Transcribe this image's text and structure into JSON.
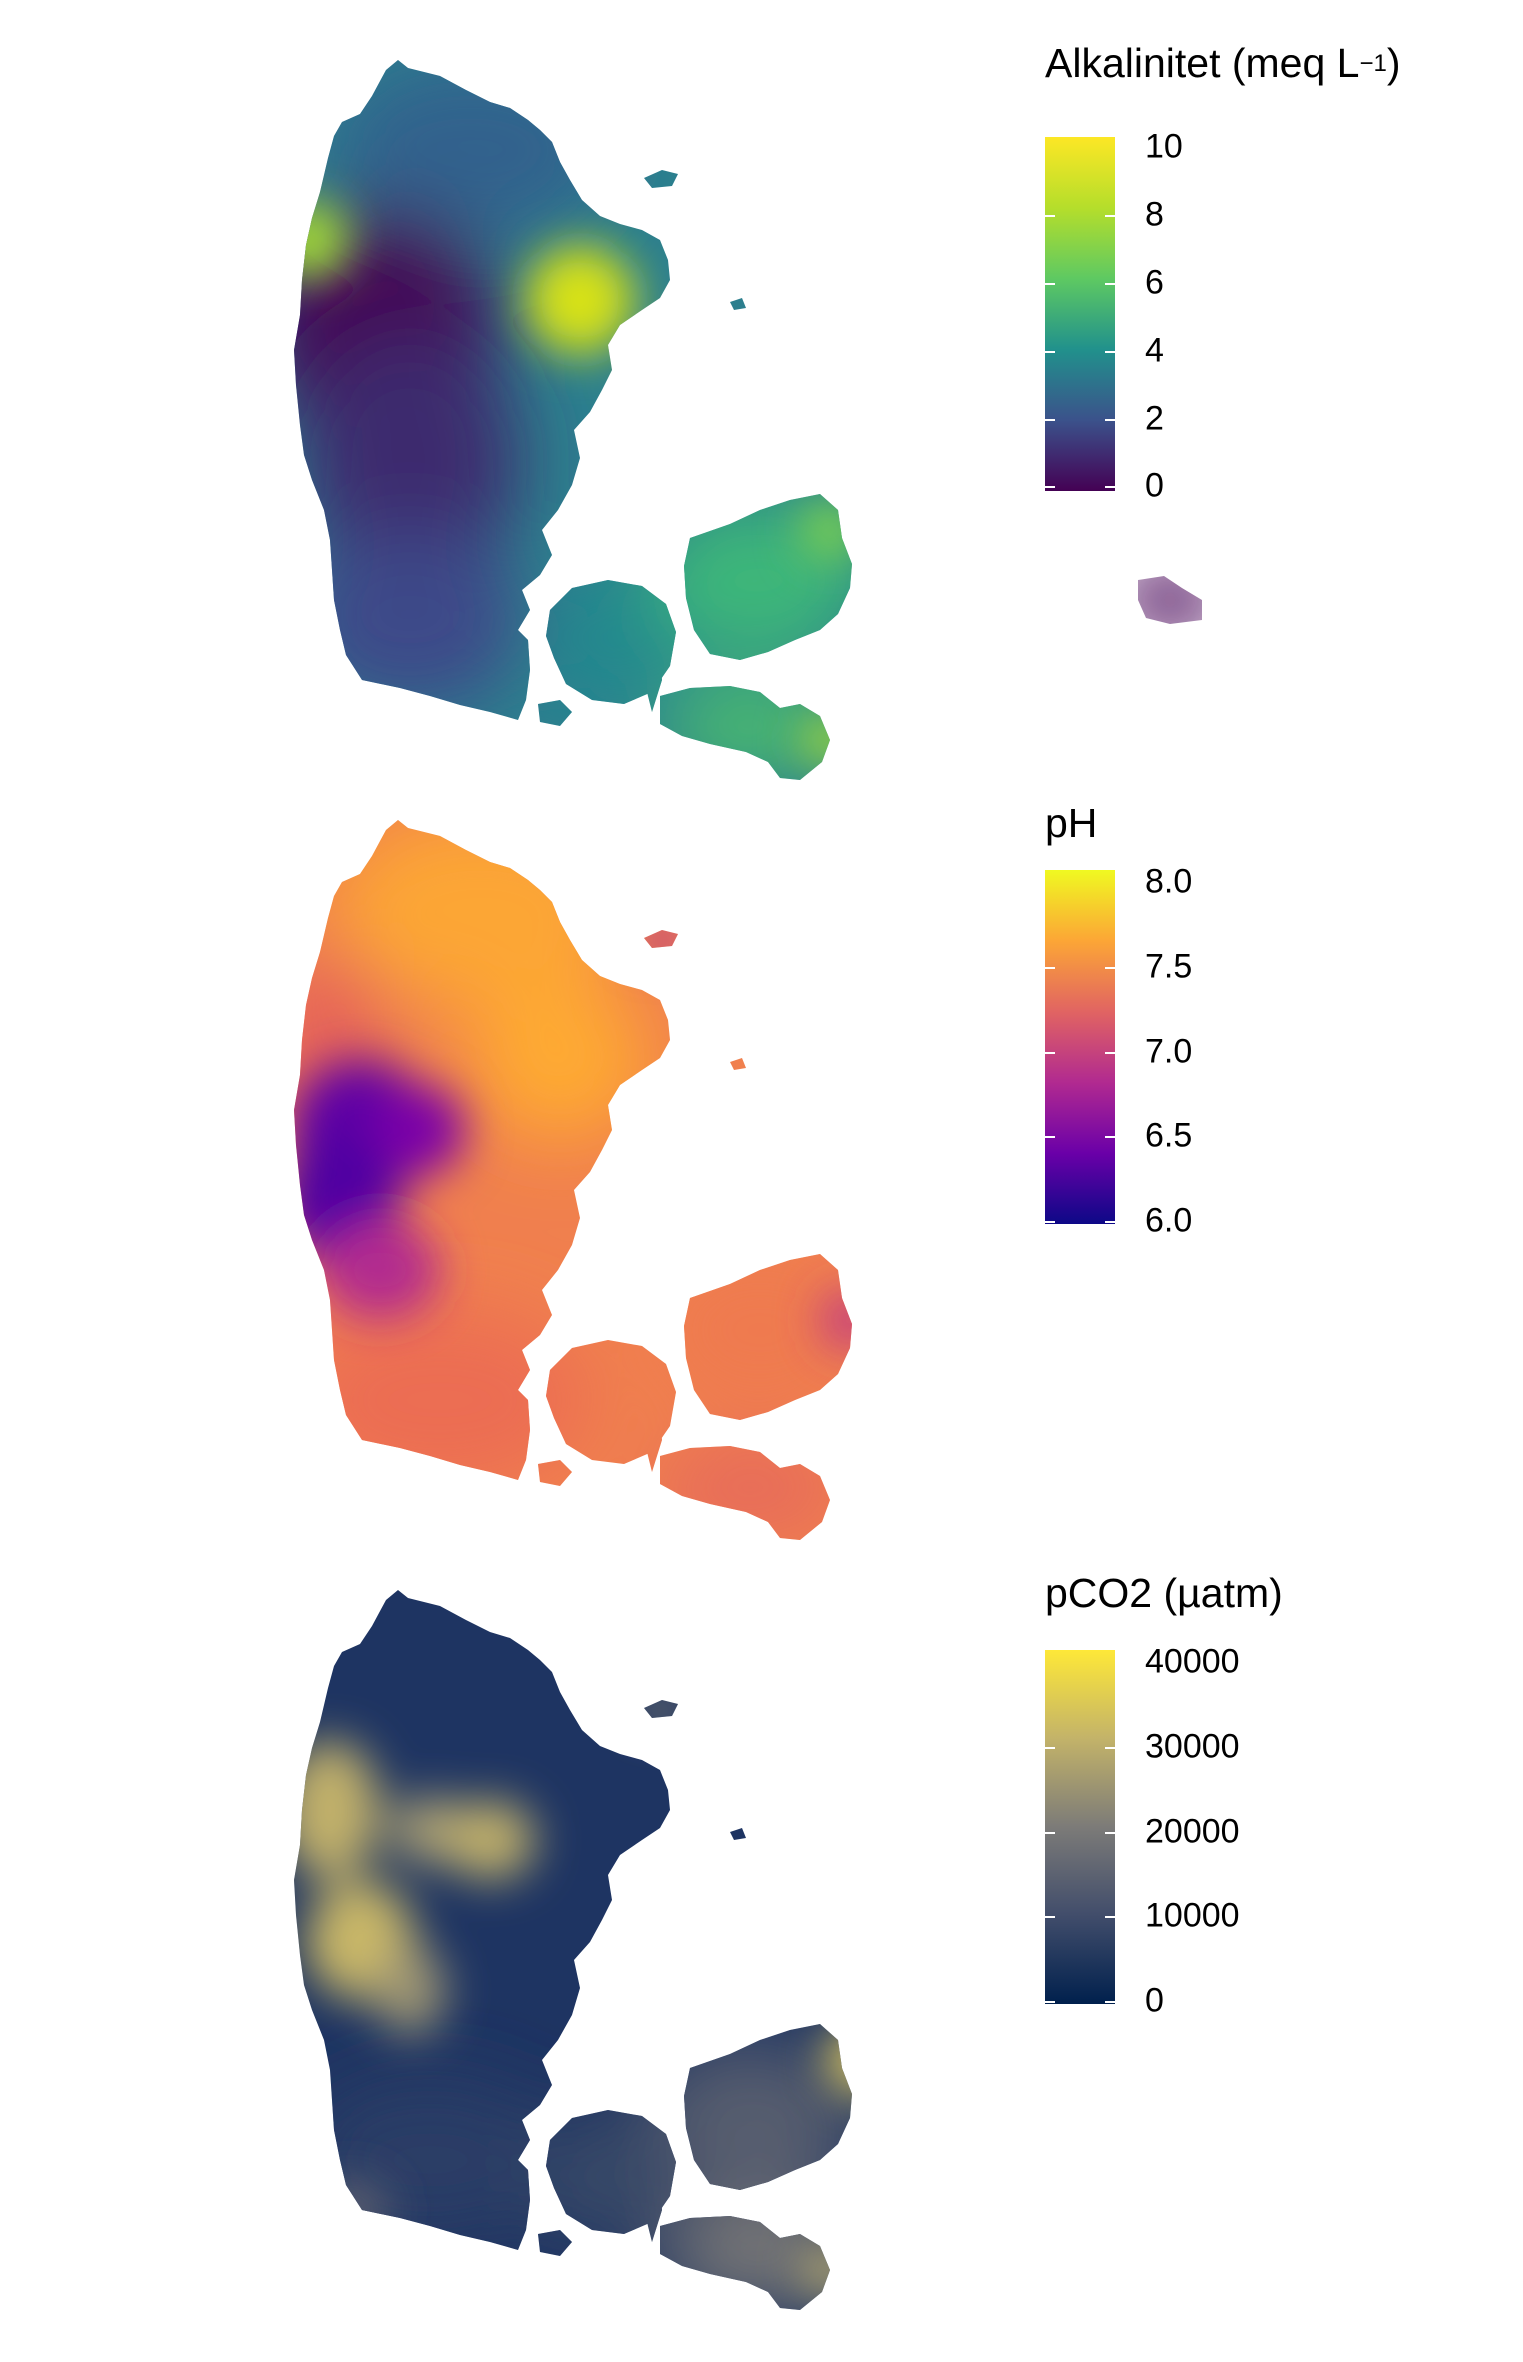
{
  "panels": [
    {
      "legend_title": "Alkalinitet (meq L",
      "legend_title_sup": "−1",
      "legend_title_close": ")",
      "ticks": [
        "10",
        "8",
        "6",
        "4",
        "2",
        "0"
      ],
      "palette": "viridis",
      "colors": [
        "#fde725",
        "#5ec962",
        "#21918c",
        "#3b528b",
        "#440154"
      ]
    },
    {
      "legend_title": "pH",
      "ticks": [
        "8.0",
        "7.5",
        "7.0",
        "6.5",
        "6.0"
      ],
      "palette": "plasma",
      "colors": [
        "#f0f921",
        "#fca636",
        "#e16462",
        "#b12a90",
        "#6a00a8",
        "#0d0887"
      ]
    },
    {
      "legend_title": "pCO2 (µatm)",
      "ticks": [
        "40000",
        "30000",
        "20000",
        "10000",
        "0"
      ],
      "palette": "cividis",
      "colors": [
        "#fee838",
        "#c3b369",
        "#7c7b78",
        "#414d6b",
        "#00204d"
      ]
    }
  ]
}
